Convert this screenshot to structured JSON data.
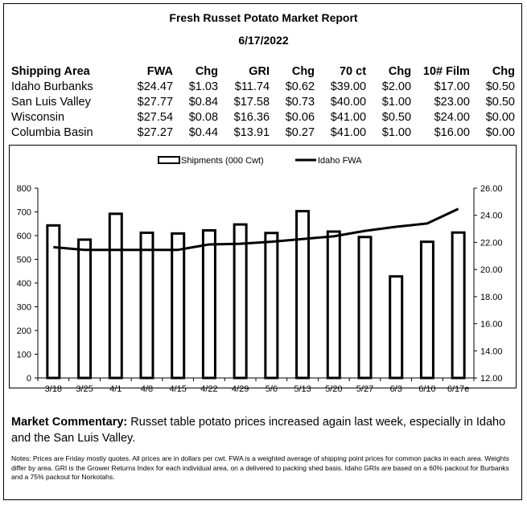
{
  "report": {
    "title": "Fresh Russet Potato Market Report",
    "date": "6/17/2022"
  },
  "table": {
    "headers": [
      "Shipping Area",
      "FWA",
      "Chg",
      "GRI",
      "Chg",
      "70 ct",
      "Chg",
      "10# Film",
      "Chg"
    ],
    "rows": [
      [
        "Idaho Burbanks",
        "$24.47",
        "$1.03",
        "$11.74",
        "$0.62",
        "$39.00",
        "$2.00",
        "$17.00",
        "$0.50"
      ],
      [
        "San Luis Valley",
        "$27.77",
        "$0.84",
        "$17.58",
        "$0.73",
        "$40.00",
        "$1.00",
        "$23.00",
        "$0.50"
      ],
      [
        "Wisconsin",
        "$27.54",
        "$0.08",
        "$16.36",
        "$0.06",
        "$41.00",
        "$0.50",
        "$24.00",
        "$0.00"
      ],
      [
        "Columbia Basin",
        "$27.27",
        "$0.44",
        "$13.91",
        "$0.27",
        "$41.00",
        "$1.00",
        "$16.00",
        "$0.00"
      ]
    ]
  },
  "chart_data": {
    "type": "bar+line",
    "categories": [
      "3/18",
      "3/25",
      "4/1",
      "4/8",
      "4/15",
      "4/22",
      "4/29",
      "5/6",
      "5/13",
      "5/20",
      "5/27",
      "6/3",
      "6/10",
      "6/17e"
    ],
    "series": [
      {
        "name": "Shipments (000 Cwt)",
        "type": "bar",
        "axis": "left",
        "values": [
          643,
          583,
          692,
          612,
          609,
          622,
          647,
          611,
          703,
          617,
          594,
          428,
          574,
          613
        ]
      },
      {
        "name": "Idaho FWA",
        "type": "line",
        "axis": "right",
        "values": [
          21.65,
          21.45,
          21.45,
          21.45,
          21.45,
          21.85,
          21.9,
          22.05,
          22.25,
          22.45,
          22.85,
          23.15,
          23.4,
          24.47
        ]
      }
    ],
    "left_axis": {
      "min": 0,
      "max": 800,
      "ticks": [
        "0",
        "100",
        "200",
        "300",
        "400",
        "500",
        "600",
        "700",
        "800"
      ]
    },
    "right_axis": {
      "min": 12,
      "max": 26,
      "ticks": [
        "12.00",
        "14.00",
        "16.00",
        "18.00",
        "20.00",
        "22.00",
        "24.00",
        "26.00"
      ]
    },
    "legend_position": "top-center",
    "grid": false
  },
  "commentary": {
    "label": "Market Commentary:",
    "text": " Russet table potato prices increased again last week, especially in Idaho and the San Luis Valley."
  },
  "notes": "Notes: Prices are Friday mostly quotes. All prices are in dollars per cwt. FWA is a weighted average of shipping point prices for  common packs in each area. Weights differ by area. GRI is the Grower Returns Index for each individual area, on a delivered to packing shed basis. Idaho GRIs are based on a 60% packout for Burbanks and a 75% packout for Norkotahs."
}
